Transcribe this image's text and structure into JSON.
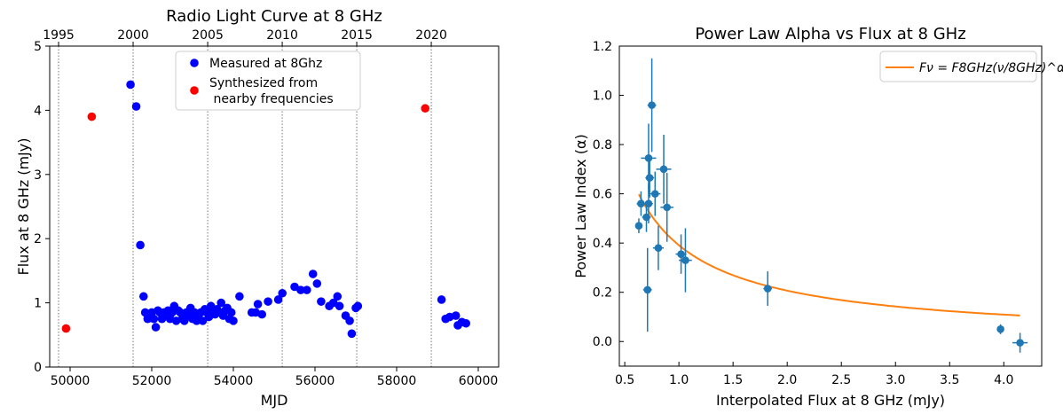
{
  "chart_data": [
    {
      "type": "scatter",
      "title": "Radio Light Curve at 8 GHz",
      "xlabel": "MJD",
      "ylabel": "Flux at 8 GHz (mJy)",
      "xlim": [
        49500,
        60500
      ],
      "ylim": [
        0,
        5
      ],
      "x_ticks": [
        50000,
        52000,
        54000,
        56000,
        58000,
        60000
      ],
      "y_ticks": [
        0,
        1,
        2,
        3,
        4,
        5
      ],
      "top_axis": {
        "ticks": [
          {
            "label": "1995",
            "mjd": 49718
          },
          {
            "label": "2000",
            "mjd": 51544
          },
          {
            "label": "2005",
            "mjd": 53371
          },
          {
            "label": "2010",
            "mjd": 55197
          },
          {
            "label": "2015",
            "mjd": 57023
          },
          {
            "label": "2020",
            "mjd": 58849
          }
        ],
        "vlines": true
      },
      "legend": {
        "position": "top-center",
        "entries": [
          "Measured at 8Ghz",
          "Synthesized from\n nearby frequencies"
        ]
      },
      "series": [
        {
          "name": "Measured at 8Ghz",
          "color": "#0000ff",
          "points": [
            [
              51480,
              4.4
            ],
            [
              51620,
              4.06
            ],
            [
              51720,
              1.9
            ],
            [
              51800,
              1.1
            ],
            [
              51840,
              0.85
            ],
            [
              51900,
              0.75
            ],
            [
              51960,
              0.8
            ],
            [
              52000,
              0.85
            ],
            [
              52050,
              0.75
            ],
            [
              52100,
              0.62
            ],
            [
              52150,
              0.88
            ],
            [
              52200,
              0.85
            ],
            [
              52250,
              0.75
            ],
            [
              52300,
              0.85
            ],
            [
              52350,
              0.82
            ],
            [
              52400,
              0.88
            ],
            [
              52450,
              0.75
            ],
            [
              52500,
              0.85
            ],
            [
              52550,
              0.95
            ],
            [
              52600,
              0.72
            ],
            [
              52650,
              0.88
            ],
            [
              52700,
              0.85
            ],
            [
              52750,
              0.75
            ],
            [
              52800,
              0.72
            ],
            [
              52850,
              0.85
            ],
            [
              52900,
              0.8
            ],
            [
              52950,
              0.92
            ],
            [
              53000,
              0.75
            ],
            [
              53050,
              0.85
            ],
            [
              53100,
              0.72
            ],
            [
              53150,
              0.82
            ],
            [
              53200,
              0.85
            ],
            [
              53250,
              0.72
            ],
            [
              53300,
              0.9
            ],
            [
              53350,
              0.85
            ],
            [
              53400,
              0.78
            ],
            [
              53450,
              0.95
            ],
            [
              53500,
              0.85
            ],
            [
              53550,
              0.82
            ],
            [
              53600,
              0.9
            ],
            [
              53650,
              0.85
            ],
            [
              53700,
              1.0
            ],
            [
              53750,
              0.8
            ],
            [
              53800,
              0.88
            ],
            [
              53850,
              0.92
            ],
            [
              53900,
              0.75
            ],
            [
              53950,
              0.85
            ],
            [
              54000,
              0.72
            ],
            [
              54150,
              1.1
            ],
            [
              54450,
              0.85
            ],
            [
              54550,
              0.85
            ],
            [
              54600,
              0.98
            ],
            [
              54700,
              0.82
            ],
            [
              54850,
              1.02
            ],
            [
              55100,
              1.05
            ],
            [
              55200,
              1.15
            ],
            [
              55500,
              1.25
            ],
            [
              55650,
              1.2
            ],
            [
              55800,
              1.2
            ],
            [
              55950,
              1.45
            ],
            [
              56050,
              1.3
            ],
            [
              56150,
              1.02
            ],
            [
              56350,
              0.95
            ],
            [
              56450,
              1.0
            ],
            [
              56550,
              1.1
            ],
            [
              56600,
              0.95
            ],
            [
              56750,
              0.8
            ],
            [
              56850,
              0.72
            ],
            [
              56900,
              0.52
            ],
            [
              57000,
              0.92
            ],
            [
              57050,
              0.95
            ],
            [
              59100,
              1.05
            ],
            [
              59200,
              0.75
            ],
            [
              59300,
              0.78
            ],
            [
              59450,
              0.8
            ],
            [
              59500,
              0.65
            ],
            [
              59600,
              0.7
            ],
            [
              59700,
              0.68
            ]
          ]
        },
        {
          "name": "Synthesized from\n nearby frequencies",
          "color": "#ff0000",
          "points": [
            [
              49900,
              0.6
            ],
            [
              50530,
              3.9
            ],
            [
              58700,
              4.03
            ]
          ]
        }
      ]
    },
    {
      "type": "scatter",
      "title": "Power Law Alpha vs Flux at 8 GHz",
      "xlabel": "Interpolated Flux at 8 GHz (mJy)",
      "ylabel": "Power Law Index (α)",
      "xlim": [
        0.45,
        4.35
      ],
      "ylim": [
        -0.1,
        1.2
      ],
      "x_ticks": [
        0.5,
        1.0,
        1.5,
        2.0,
        2.5,
        3.0,
        3.5,
        4.0
      ],
      "y_ticks": [
        0.0,
        0.2,
        0.4,
        0.6,
        0.8,
        1.0,
        1.2
      ],
      "legend": {
        "position": "top-right",
        "entries": [
          "Fν = F8GHz(ν/8GHz)^α"
        ]
      },
      "series": [
        {
          "name": "data",
          "color": "#1f77b4",
          "points": [
            {
              "x": 0.63,
              "y": 0.47,
              "xerr": 0.03,
              "yerr": 0.03
            },
            {
              "x": 0.65,
              "y": 0.56,
              "xerr": 0.04,
              "yerr": 0.05
            },
            {
              "x": 0.7,
              "y": 0.505,
              "xerr": 0.04,
              "yerr": 0.06
            },
            {
              "x": 0.71,
              "y": 0.21,
              "xerr": 0.04,
              "yerr": 0.17
            },
            {
              "x": 0.72,
              "y": 0.745,
              "xerr": 0.07,
              "yerr": 0.14
            },
            {
              "x": 0.72,
              "y": 0.56,
              "xerr": 0.04,
              "yerr": 0.08
            },
            {
              "x": 0.73,
              "y": 0.665,
              "xerr": 0.04,
              "yerr": 0.08
            },
            {
              "x": 0.75,
              "y": 0.96,
              "xerr": 0.04,
              "yerr": 0.19
            },
            {
              "x": 0.78,
              "y": 0.6,
              "xerr": 0.05,
              "yerr": 0.09
            },
            {
              "x": 0.81,
              "y": 0.38,
              "xerr": 0.05,
              "yerr": 0.09
            },
            {
              "x": 0.86,
              "y": 0.7,
              "xerr": 0.07,
              "yerr": 0.14
            },
            {
              "x": 0.89,
              "y": 0.545,
              "xerr": 0.06,
              "yerr": 0.14
            },
            {
              "x": 1.02,
              "y": 0.355,
              "xerr": 0.05,
              "yerr": 0.08
            },
            {
              "x": 1.06,
              "y": 0.33,
              "xerr": 0.06,
              "yerr": 0.13
            },
            {
              "x": 1.82,
              "y": 0.215,
              "xerr": 0.04,
              "yerr": 0.07
            },
            {
              "x": 3.97,
              "y": 0.05,
              "xerr": 0.03,
              "yerr": 0.02
            },
            {
              "x": 4.15,
              "y": -0.005,
              "xerr": 0.07,
              "yerr": 0.04
            }
          ]
        },
        {
          "name": "fit",
          "color": "#ff7f0e",
          "line": true,
          "fit": {
            "A": 0.598,
            "ref": 0.63,
            "c": 0.92
          }
        }
      ]
    }
  ]
}
